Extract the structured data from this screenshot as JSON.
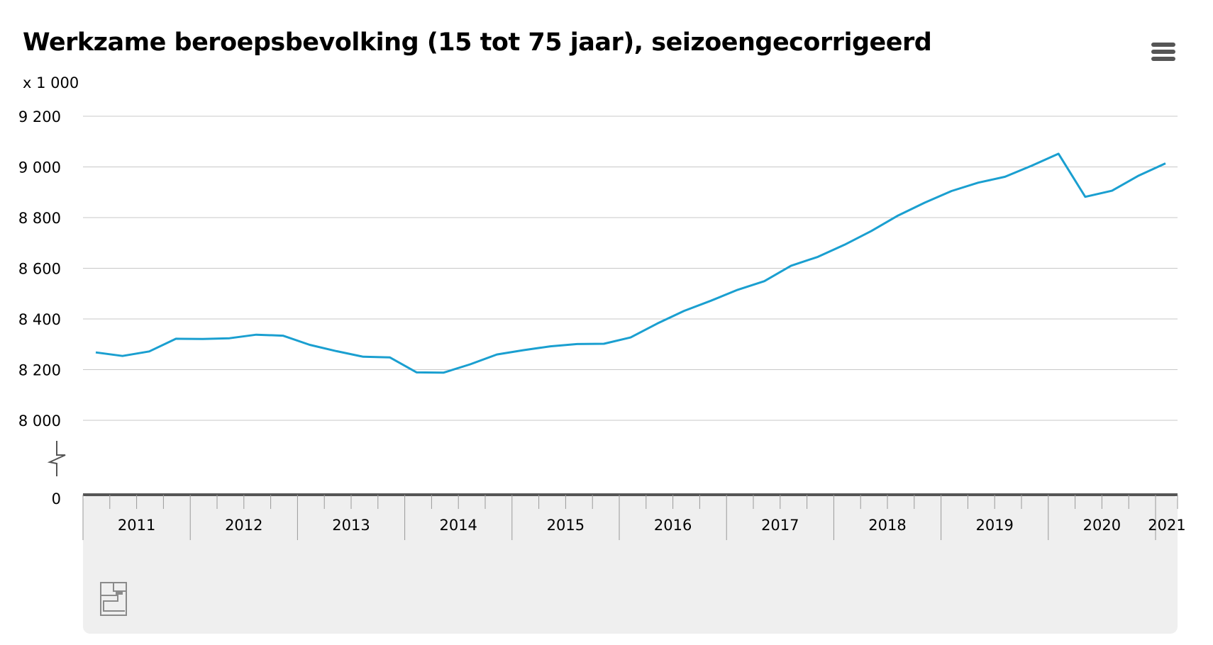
{
  "title": "Werkzame beroepsbevolking (15 tot 75 jaar), seizoengecorrigeerd",
  "menu": {
    "icon": "hamburger-menu-icon"
  },
  "logo": {
    "icon": "cbs-logo"
  },
  "colors": {
    "line": "#1a9fd0",
    "grid": "#c8c8c8",
    "axis": "#555555",
    "footer": "#efefef"
  },
  "chart_data": {
    "type": "line",
    "title": "Werkzame beroepsbevolking (15 tot 75 jaar), seizoengecorrigeerd",
    "ylabel": "x 1 000",
    "ylim": [
      8000,
      9200
    ],
    "broken_axis_zero_label": "0",
    "yticks": [
      {
        "value": 9200,
        "label": "9 200"
      },
      {
        "value": 9000,
        "label": "9 000"
      },
      {
        "value": 8800,
        "label": "8 800"
      },
      {
        "value": 8600,
        "label": "8 600"
      },
      {
        "value": 8400,
        "label": "8 400"
      },
      {
        "value": 8200,
        "label": "8 200"
      },
      {
        "value": 8000,
        "label": "8 000"
      }
    ],
    "x_labels": [
      "2011",
      "2012",
      "2013",
      "2014",
      "2015",
      "2016",
      "2017",
      "2018",
      "2019",
      "2020",
      "2021"
    ],
    "grid": true,
    "series": [
      {
        "x": [
          "2011 K1",
          "2011 K2",
          "2011 K3",
          "2011 K4",
          "2012 K1",
          "2012 K2",
          "2012 K3",
          "2012 K4",
          "2013 K1",
          "2013 K2",
          "2013 K3",
          "2013 K4",
          "2014 K1",
          "2014 K2",
          "2014 K3",
          "2014 K4",
          "2015 K1",
          "2015 K2",
          "2015 K3",
          "2015 K4",
          "2016 K1",
          "2016 K2",
          "2016 K3",
          "2016 K4",
          "2017 K1",
          "2017 K2",
          "2017 K3",
          "2017 K4",
          "2018 K1",
          "2018 K2",
          "2018 K3",
          "2018 K4",
          "2019 K1",
          "2019 K2",
          "2019 K3",
          "2019 K4",
          "2020 K1",
          "2020 K2",
          "2020 K3",
          "2020 K4",
          "2021 K1"
        ],
        "values": [
          8268,
          8254,
          8272,
          8322,
          8321,
          8324,
          8338,
          8334,
          8298,
          8273,
          8251,
          8248,
          8189,
          8188,
          8221,
          8260,
          8277,
          8292,
          8301,
          8302,
          8327,
          8382,
          8432,
          8472,
          8515,
          8549,
          8610,
          8645,
          8693,
          8747,
          8808,
          8859,
          8905,
          8938,
          8961,
          9005,
          9052,
          8882,
          8906,
          8966,
          9014
        ]
      }
    ]
  }
}
